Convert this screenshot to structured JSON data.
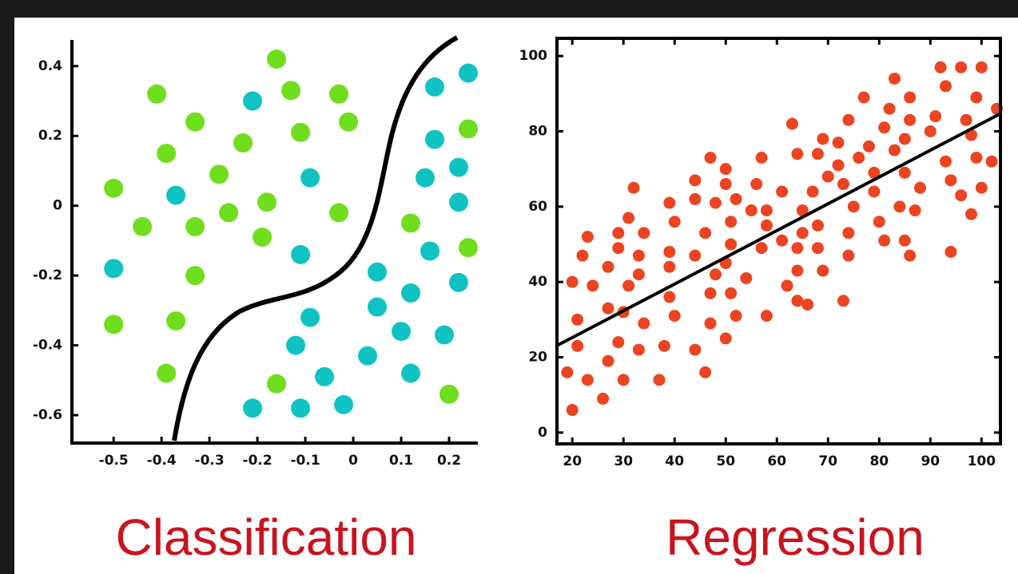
{
  "chart_data": [
    {
      "type": "scatter",
      "title": "Classification",
      "xlim": [
        -0.587,
        0.26
      ],
      "ylim": [
        -0.68,
        0.475
      ],
      "xticks": [
        -0.5,
        -0.4,
        -0.3,
        -0.2,
        -0.1,
        0,
        0.1,
        0.2
      ],
      "yticks": [
        0.4,
        0.2,
        0,
        -0.2,
        -0.4,
        -0.6
      ],
      "series": [
        {
          "color": "#6fde1c",
          "x": [
            -0.16,
            -0.41,
            -0.13,
            -0.03,
            -0.33,
            -0.01,
            -0.11,
            -0.23,
            -0.39,
            0.24,
            -0.28,
            -0.5,
            -0.18,
            -0.26,
            -0.03,
            -0.44,
            -0.33,
            -0.19,
            0.12,
            0.24,
            -0.33,
            -0.5,
            -0.37,
            -0.39,
            -0.16,
            0.2
          ],
          "values": [
            0.42,
            0.32,
            0.33,
            0.32,
            0.24,
            0.24,
            0.21,
            0.18,
            0.15,
            0.22,
            0.09,
            0.05,
            0.01,
            -0.02,
            -0.02,
            -0.06,
            -0.06,
            -0.09,
            -0.05,
            -0.12,
            -0.2,
            -0.34,
            -0.33,
            -0.48,
            -0.51,
            -0.54
          ]
        },
        {
          "color": "#10c3c3",
          "x": [
            -0.21,
            0.17,
            0.24,
            0.17,
            0.22,
            -0.09,
            -0.37,
            0.15,
            0.22,
            -0.5,
            -0.11,
            0.16,
            0.05,
            0.22,
            0.12,
            0.05,
            -0.09,
            0.1,
            0.19,
            -0.12,
            0.03,
            -0.06,
            0.12,
            -0.21,
            -0.11,
            -0.02
          ],
          "values": [
            0.3,
            0.34,
            0.38,
            0.19,
            0.11,
            0.08,
            0.03,
            0.08,
            0.01,
            -0.18,
            -0.14,
            -0.13,
            -0.19,
            -0.22,
            -0.25,
            -0.29,
            -0.32,
            -0.36,
            -0.37,
            -0.4,
            -0.43,
            -0.49,
            -0.48,
            -0.58,
            -0.58,
            -0.57
          ]
        }
      ]
    },
    {
      "type": "scatter",
      "title": "Regression",
      "xlim": [
        17,
        103.7
      ],
      "ylim": [
        -3,
        104.7
      ],
      "xticks": [
        20,
        30,
        40,
        50,
        60,
        70,
        80,
        90,
        100
      ],
      "yticks": [
        0,
        20,
        40,
        60,
        80,
        100
      ],
      "series": [
        {
          "color": "#ec4420",
          "x": [
            20,
            21,
            21,
            19,
            20,
            22,
            23,
            24,
            23,
            26,
            27,
            27,
            27,
            29,
            29,
            29,
            30,
            31,
            32,
            31,
            30,
            33,
            33,
            34,
            34,
            33,
            37,
            39,
            39,
            38,
            39,
            40,
            40,
            39,
            44,
            44,
            44,
            44,
            46,
            47,
            46,
            47,
            48,
            47,
            48,
            50,
            50,
            50,
            51,
            50,
            51,
            51,
            52,
            52,
            55,
            54,
            56,
            57,
            58,
            57,
            58,
            58,
            61,
            61,
            62,
            63,
            64,
            65,
            64,
            65,
            64,
            64,
            66,
            67,
            68,
            68,
            68,
            69,
            69,
            70,
            72,
            72,
            73,
            73,
            74,
            74,
            74,
            75,
            76,
            77,
            78,
            79,
            79,
            80,
            81,
            81,
            82,
            83,
            83,
            84,
            85,
            85,
            85,
            86,
            86,
            86,
            87,
            88,
            90,
            91,
            92,
            93,
            93,
            94,
            94,
            96,
            96,
            97,
            98,
            98,
            99,
            99,
            100,
            100,
            102,
            103
          ],
          "values": [
            40,
            30,
            23,
            16,
            6,
            47,
            52,
            39,
            14,
            9,
            19,
            33,
            44,
            53,
            49,
            24,
            14,
            57,
            65,
            39,
            32,
            47,
            22,
            53,
            29,
            42,
            14,
            44,
            61,
            23,
            36,
            56,
            31,
            48,
            67,
            62,
            47,
            22,
            16,
            73,
            53,
            37,
            61,
            29,
            42,
            66,
            70,
            45,
            37,
            25,
            50,
            56,
            62,
            31,
            59,
            41,
            66,
            49,
            31,
            73,
            55,
            59,
            64,
            51,
            39,
            82,
            74,
            59,
            43,
            53,
            35,
            49,
            34,
            64,
            74,
            55,
            49,
            43,
            78,
            68,
            77,
            71,
            66,
            35,
            83,
            53,
            47,
            60,
            73,
            89,
            76,
            69,
            64,
            56,
            81,
            51,
            86,
            94,
            75,
            60,
            51,
            69,
            78,
            83,
            89,
            47,
            59,
            65,
            80,
            84,
            97,
            92,
            72,
            48,
            67,
            63,
            97,
            83,
            79,
            58,
            89,
            73,
            97,
            65,
            72,
            86
          ]
        },
        {
          "type": "line",
          "color": "#000000",
          "x": [
            17,
            103.7
          ],
          "values": [
            23.1,
            84.7
          ]
        }
      ]
    }
  ]
}
